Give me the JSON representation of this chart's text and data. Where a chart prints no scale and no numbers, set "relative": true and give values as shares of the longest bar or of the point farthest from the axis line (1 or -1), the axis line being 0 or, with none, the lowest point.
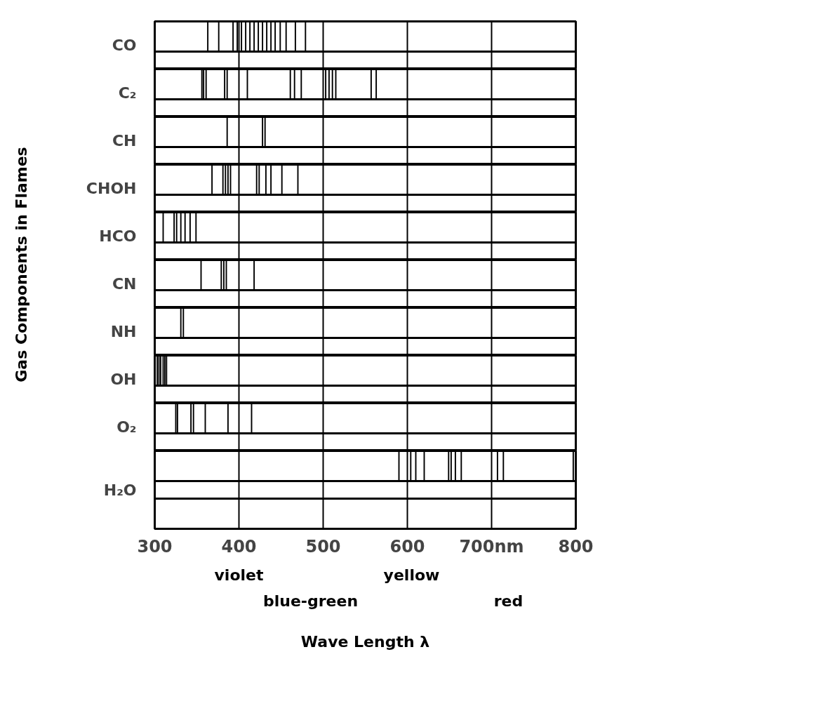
{
  "chart_data": [
    {
      "type": "bar",
      "relative": true,
      "ylabel": "CO",
      "annotations": [
        "Gas Components in Flames"
      ],
      "xlim": [
        300,
        800
      ],
      "xticks": [
        300,
        400,
        500,
        600,
        700,
        800
      ],
      "grid": "x",
      "tick_labels": false,
      "color": "#000000",
      "x": [
        363,
        376,
        393,
        398,
        403,
        408,
        413,
        418,
        423,
        428,
        433,
        438,
        443,
        449,
        456,
        467,
        479
      ],
      "values": [
        1,
        1,
        1,
        1,
        1,
        1,
        1,
        1,
        1,
        1,
        1,
        1,
        1,
        1,
        1,
        1,
        1
      ]
    },
    {
      "type": "bar",
      "relative": true,
      "ylabel": "C₂",
      "xlim": [
        300,
        800
      ],
      "xticks": [
        300,
        400,
        500,
        600,
        700,
        800
      ],
      "grid": "x",
      "tick_labels": false,
      "color": "#000000",
      "x": [
        356,
        358,
        361,
        383,
        386,
        410,
        461,
        466,
        474,
        503,
        507,
        511,
        515,
        557,
        563
      ],
      "values": [
        1,
        1,
        1,
        1,
        1,
        1,
        1,
        1,
        1,
        1,
        1,
        1,
        1,
        1,
        1
      ]
    },
    {
      "type": "bar",
      "relative": true,
      "ylabel": "CH",
      "xlim": [
        300,
        800
      ],
      "xticks": [
        300,
        400,
        500,
        600,
        700,
        800
      ],
      "grid": "x",
      "tick_labels": false,
      "color": "#000000",
      "x": [
        386,
        428,
        431
      ],
      "values": [
        1,
        1,
        1
      ]
    },
    {
      "type": "bar",
      "relative": true,
      "ylabel": "CHOH",
      "xlim": [
        300,
        800
      ],
      "xticks": [
        300,
        400,
        500,
        600,
        700,
        800
      ],
      "grid": "x",
      "tick_labels": false,
      "color": "#000000",
      "x": [
        368,
        381,
        384,
        387,
        390,
        421,
        424,
        432,
        438,
        451,
        470
      ],
      "values": [
        1,
        1,
        1,
        1,
        1,
        1,
        1,
        1,
        1,
        1,
        1
      ]
    },
    {
      "type": "bar",
      "relative": true,
      "ylabel": "HCO",
      "xlim": [
        300,
        800
      ],
      "xticks": [
        300,
        400,
        500,
        600,
        700,
        800
      ],
      "grid": "x",
      "tick_labels": false,
      "color": "#000000",
      "x": [
        310,
        323,
        326,
        331,
        336,
        342,
        349
      ],
      "values": [
        1,
        1,
        1,
        1,
        1,
        1,
        1
      ]
    },
    {
      "type": "bar",
      "relative": true,
      "ylabel": "CN",
      "xlim": [
        300,
        800
      ],
      "xticks": [
        300,
        400,
        500,
        600,
        700,
        800
      ],
      "grid": "x",
      "tick_labels": false,
      "color": "#000000",
      "x": [
        355,
        379,
        382,
        385,
        418
      ],
      "values": [
        1,
        1,
        1,
        1,
        1
      ]
    },
    {
      "type": "bar",
      "relative": true,
      "ylabel": "NH",
      "xlim": [
        300,
        800
      ],
      "xticks": [
        300,
        400,
        500,
        600,
        700,
        800
      ],
      "grid": "x",
      "tick_labels": false,
      "color": "#000000",
      "x": [
        331,
        334
      ],
      "values": [
        1,
        1
      ]
    },
    {
      "type": "bar",
      "relative": true,
      "ylabel": "OH",
      "xlim": [
        300,
        800
      ],
      "xticks": [
        300,
        400,
        500,
        600,
        700,
        800
      ],
      "grid": "x",
      "tick_labels": false,
      "color": "#000000",
      "x": [
        303,
        305,
        307,
        310,
        312,
        314
      ],
      "values": [
        1,
        1,
        1,
        1,
        1,
        1
      ]
    },
    {
      "type": "bar",
      "relative": true,
      "ylabel": "O₂",
      "xlim": [
        300,
        800
      ],
      "xticks": [
        300,
        400,
        500,
        600,
        700,
        800
      ],
      "grid": "x",
      "tick_labels": false,
      "color": "#000000",
      "x": [
        325,
        327,
        343,
        346,
        360,
        387,
        415
      ],
      "values": [
        1,
        1,
        1,
        1,
        1,
        1,
        1
      ]
    },
    {
      "type": "bar",
      "relative": true,
      "ylabel": "H₂O",
      "xlabel": "Wave Length λ",
      "annotations": [
        "violet",
        "yellow",
        "blue-green",
        "red"
      ],
      "xlim": [
        300,
        800
      ],
      "xticks": [
        300,
        400,
        500,
        600,
        {
          "value": 700,
          "label": "700nm"
        },
        800
      ],
      "grid": "x",
      "tick_labels": "x",
      "color": "#000000",
      "x": [
        590,
        604,
        610,
        620,
        649,
        652,
        657,
        664,
        707,
        714,
        797
      ],
      "values": [
        1,
        1,
        1,
        1,
        1,
        1,
        1,
        1,
        1,
        1,
        1
      ]
    }
  ]
}
